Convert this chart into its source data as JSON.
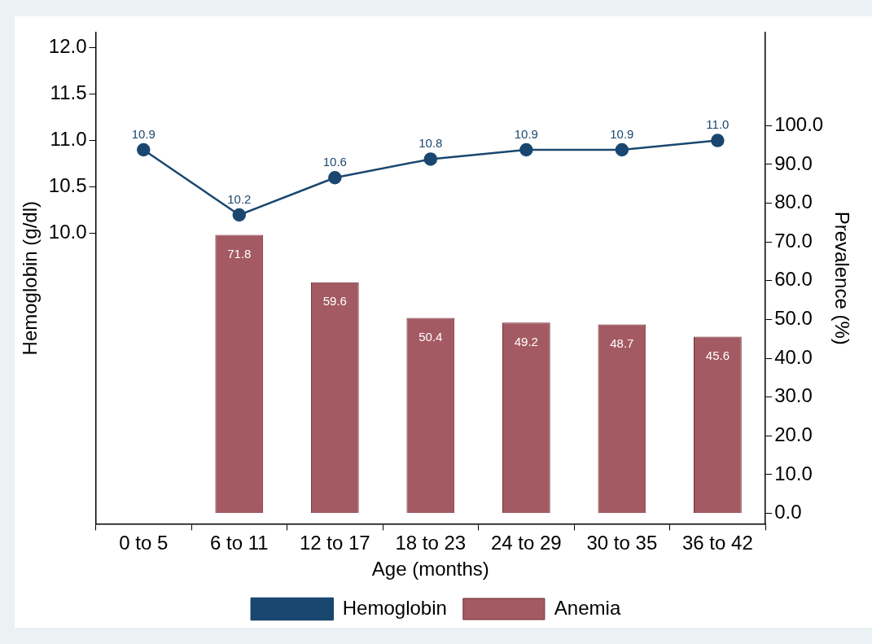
{
  "chart_data": {
    "type": "bar",
    "xlabel": "Age (months)",
    "ylabel": "Hemoglobin (g/dl)",
    "y2label": "Prevalence (%)",
    "categories": [
      "0 to 5",
      "6 to 11",
      "12 to 17",
      "18 to 23",
      "24 to 29",
      "30 to 35",
      "36 to 42"
    ],
    "series": [
      {
        "name": "Hemoglobin",
        "type": "line",
        "color": "#1a476f",
        "axis": "y",
        "values": [
          10.9,
          10.2,
          10.6,
          10.8,
          10.9,
          10.9,
          11.0
        ],
        "value_labels": [
          "10.9",
          "10.2",
          "10.6",
          "10.8",
          "10.9",
          "10.9",
          "11.0"
        ]
      },
      {
        "name": "Anemia",
        "color": "#a45a62",
        "axis": "y2",
        "values": [
          null,
          71.8,
          59.6,
          50.4,
          49.2,
          48.7,
          45.6
        ],
        "value_labels": [
          null,
          "71.8",
          "59.6",
          "50.4",
          "49.2",
          "48.7",
          "45.6"
        ]
      }
    ],
    "ylim": [
      6.88,
      12.16
    ],
    "yticks": [
      {
        "value": 10,
        "label": "10.0"
      },
      {
        "value": 10.5,
        "label": "10.5"
      },
      {
        "value": 11,
        "label": "11.0"
      },
      {
        "value": 11.5,
        "label": "11.5"
      },
      {
        "value": 12,
        "label": "12.0"
      }
    ],
    "y2lim": [
      -2.7,
      124
    ],
    "y2ticks": [
      {
        "value": 0,
        "label": "0.0"
      },
      {
        "value": 10,
        "label": "10.0"
      },
      {
        "value": 20,
        "label": "20.0"
      },
      {
        "value": 30,
        "label": "30.0"
      },
      {
        "value": 40,
        "label": "40.0"
      },
      {
        "value": 50,
        "label": "50.0"
      },
      {
        "value": 60,
        "label": "60.0"
      },
      {
        "value": 70,
        "label": "70.0"
      },
      {
        "value": 80,
        "label": "80.0"
      },
      {
        "value": 90,
        "label": "90.0"
      },
      {
        "value": 100,
        "label": "100.0"
      }
    ],
    "grid": false,
    "legend": "bottom",
    "marker": "circle",
    "line_style": "solid"
  }
}
